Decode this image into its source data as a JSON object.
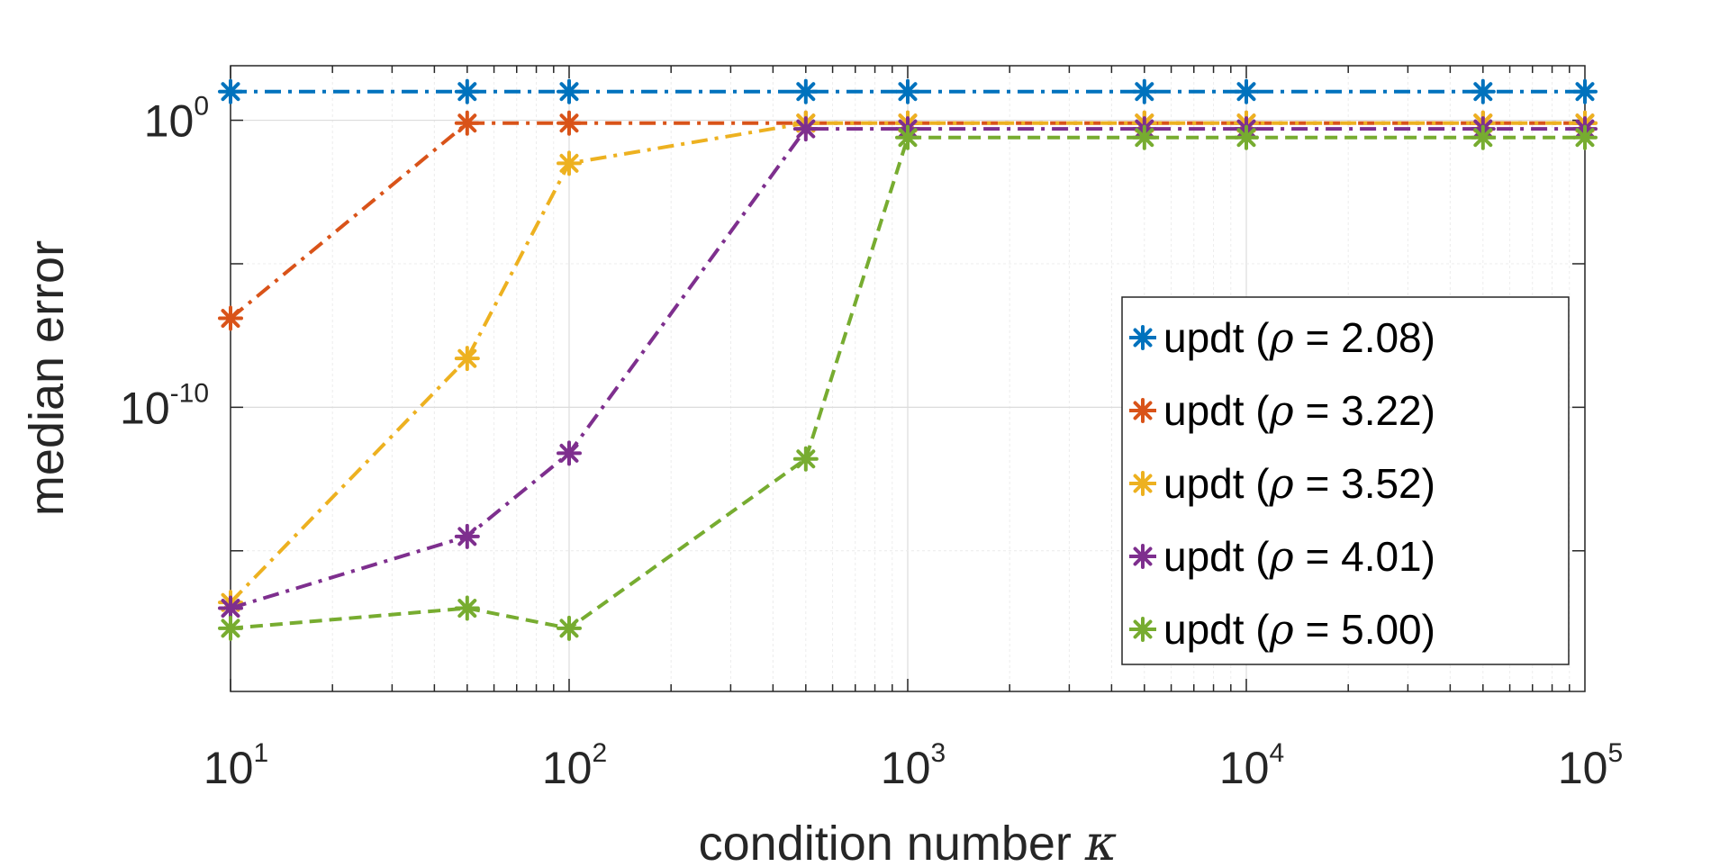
{
  "chart_data": {
    "type": "line",
    "title": "",
    "xlabel": "condition number",
    "xlabel_symbol": "κ",
    "ylabel": "median error",
    "xscale": "log",
    "yscale": "log",
    "xlim": [
      10,
      100000
    ],
    "ylim_exponent": [
      -19.9,
      1.9
    ],
    "x_tick_labels": [
      {
        "base": "10",
        "exp": "1"
      },
      {
        "base": "10",
        "exp": "2"
      },
      {
        "base": "10",
        "exp": "3"
      },
      {
        "base": "10",
        "exp": "4"
      },
      {
        "base": "10",
        "exp": "5"
      }
    ],
    "y_tick_labels": [
      {
        "base": "10",
        "exp": "0",
        "value_exponent": 0
      },
      {
        "base": "10",
        "exp": "-10",
        "value_exponent": -10
      }
    ],
    "grid": true,
    "legend_position": "right",
    "x": [
      10,
      50,
      100,
      500,
      1000,
      5000,
      10000,
      50000,
      100000
    ],
    "series": [
      {
        "name": "updt",
        "rho_symbol": "ρ",
        "rho_text": " = 2.08)",
        "prefix": "updt (",
        "color": "#0072BD",
        "log10_values": [
          1.0,
          1.0,
          1.0,
          1.0,
          1.0,
          1.0,
          1.0,
          1.0,
          1.0
        ]
      },
      {
        "name": "updt",
        "rho_symbol": "ρ",
        "rho_text": " = 3.22)",
        "prefix": "updt (",
        "color": "#D95319",
        "log10_values": [
          -6.9,
          -0.1,
          -0.1,
          -0.1,
          -0.1,
          -0.1,
          -0.1,
          -0.1,
          -0.1
        ]
      },
      {
        "name": "updt",
        "rho_symbol": "ρ",
        "rho_text": " = 3.52)",
        "prefix": "updt (",
        "color": "#EDB120",
        "log10_values": [
          -16.8,
          -8.3,
          -1.5,
          -0.1,
          -0.1,
          -0.1,
          -0.1,
          -0.1,
          -0.1
        ]
      },
      {
        "name": "updt",
        "rho_symbol": "ρ",
        "rho_text": " = 4.01)",
        "prefix": "updt (",
        "color": "#7E2F8E",
        "log10_values": [
          -17.0,
          -14.5,
          -11.6,
          -0.3,
          -0.3,
          -0.3,
          -0.3,
          -0.3,
          -0.3
        ]
      },
      {
        "name": "updt",
        "rho_symbol": "ρ",
        "rho_text": " = 5.00)",
        "prefix": "updt (",
        "color": "#77AC30",
        "log10_values": [
          -17.7,
          -17.0,
          -17.7,
          -11.8,
          -0.6,
          -0.6,
          -0.6,
          -0.6,
          -0.6
        ]
      }
    ]
  }
}
